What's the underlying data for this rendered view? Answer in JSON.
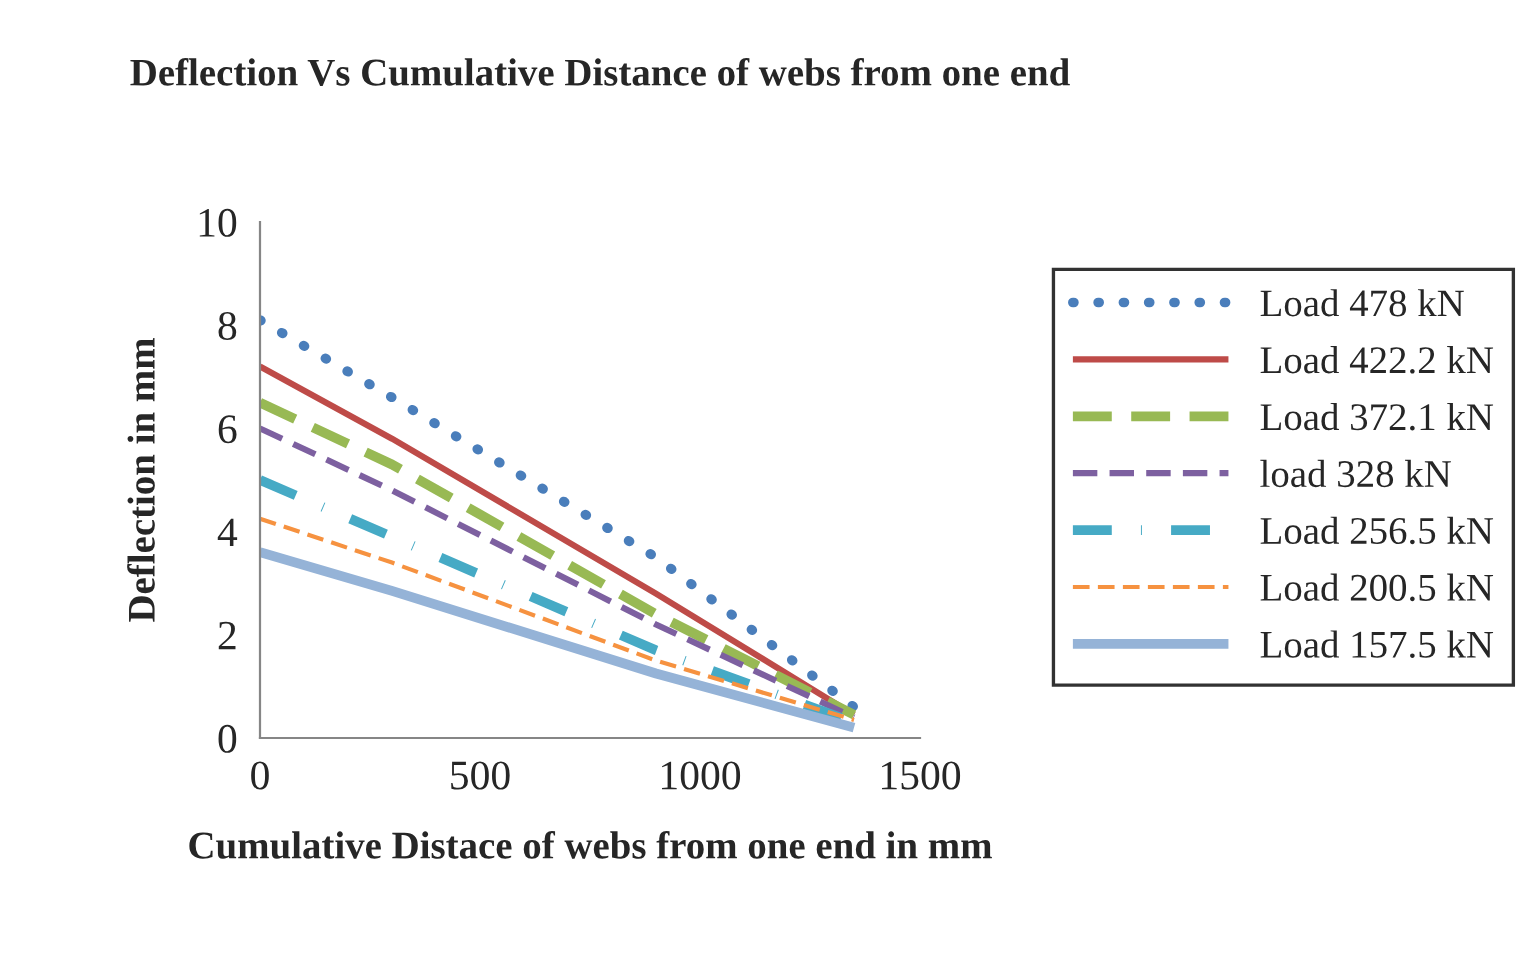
{
  "chart_data": {
    "type": "line",
    "title": "Deflection Vs Cumulative Distance of webs from one end",
    "xlabel": "Cumulative Distace of webs from one end in mm",
    "ylabel": "Deflection in mm",
    "x": [
      0,
      300,
      900,
      1350
    ],
    "xlim": [
      0,
      1500
    ],
    "xticks": [
      0,
      500,
      1000,
      1500
    ],
    "ylim": [
      0,
      10
    ],
    "yticks": [
      0,
      2,
      4,
      6,
      8,
      10
    ],
    "grid": false,
    "legend": "right",
    "marker": "none",
    "series": [
      {
        "name": "Load 478 kN",
        "color": "#4a7ebb",
        "line_style": "dotted",
        "values": [
          8.1,
          6.6,
          3.5,
          0.6
        ]
      },
      {
        "name": "Load 422.2 kN",
        "color": "#be4b48",
        "line_style": "solid",
        "values": [
          7.2,
          5.8,
          2.8,
          0.45
        ]
      },
      {
        "name": "Load 372.1 kN",
        "color": "#98b954",
        "line_style": "dashed",
        "values": [
          6.5,
          5.3,
          2.4,
          0.45
        ]
      },
      {
        "name": "load 328 kN",
        "color": "#7d60a0",
        "line_style": "dashed",
        "values": [
          6.0,
          4.8,
          2.2,
          0.4
        ]
      },
      {
        "name": "Load 256.5 kN",
        "color": "#46aac5",
        "line_style": "dashdot",
        "values": [
          5.0,
          3.9,
          1.7,
          0.3
        ]
      },
      {
        "name": "Load 200.5 kN",
        "color": "#f69240",
        "line_style": "dashed",
        "values": [
          4.25,
          3.4,
          1.5,
          0.35
        ]
      },
      {
        "name": "Load 157.5 kN",
        "color": "#95b3d7",
        "line_style": "solid",
        "values": [
          3.6,
          2.85,
          1.25,
          0.2
        ]
      }
    ]
  }
}
